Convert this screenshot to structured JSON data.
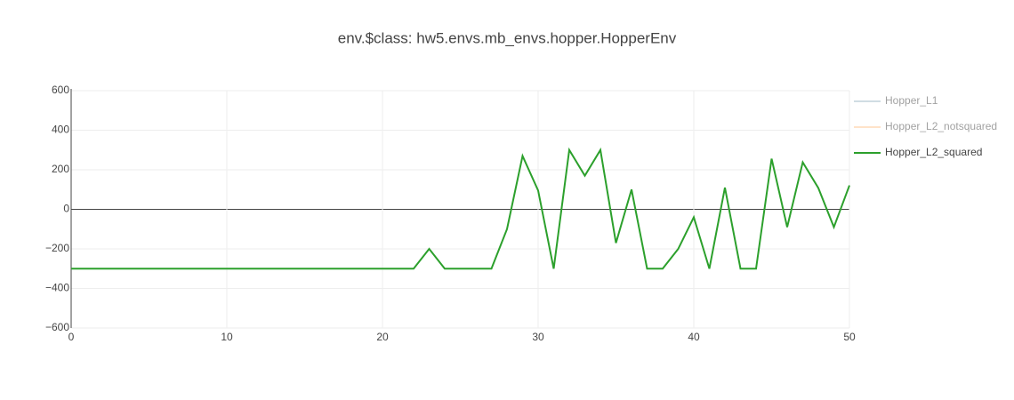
{
  "chart_data": {
    "type": "line",
    "title": "env.$class: hw5.envs.mb_envs.hopper.HopperEnv",
    "x": [
      0,
      1,
      2,
      3,
      4,
      5,
      6,
      7,
      8,
      9,
      10,
      11,
      12,
      13,
      14,
      15,
      16,
      17,
      18,
      19,
      20,
      21,
      22,
      23,
      24,
      25,
      26,
      27,
      28,
      29,
      30,
      31,
      32,
      33,
      34,
      35,
      36,
      37,
      38,
      39,
      40,
      41,
      42,
      43,
      44,
      45,
      46,
      47,
      48,
      49,
      50
    ],
    "series": [
      {
        "name": "Hopper_L1",
        "color": "#a3bcc9",
        "visible": false
      },
      {
        "name": "Hopper_L2_notsquared",
        "color": "#ffc994",
        "visible": false
      },
      {
        "name": "Hopper_L2_squared",
        "color": "#2ca02c",
        "visible": true,
        "values": [
          -300,
          -300,
          -300,
          -300,
          -300,
          -300,
          -300,
          -300,
          -300,
          -300,
          -300,
          -300,
          -300,
          -300,
          -300,
          -300,
          -300,
          -300,
          -300,
          -300,
          -300,
          -300,
          -300,
          -200,
          -300,
          -300,
          -300,
          -300,
          -100,
          270,
          95,
          -300,
          300,
          170,
          300,
          -170,
          100,
          -300,
          -300,
          -200,
          -40,
          -300,
          110,
          -300,
          -300,
          256,
          -90,
          238,
          108,
          -90,
          121
        ]
      }
    ],
    "xlim": [
      0,
      50
    ],
    "xticks": [
      0,
      10,
      20,
      30,
      40,
      50
    ],
    "ylim": [
      -600,
      600
    ],
    "yticks": [
      {
        "value": -600,
        "label": "−600"
      },
      {
        "value": -400,
        "label": "−400"
      },
      {
        "value": -200,
        "label": "−200"
      },
      0,
      200,
      400,
      600
    ],
    "grid": true,
    "legend": "right"
  }
}
